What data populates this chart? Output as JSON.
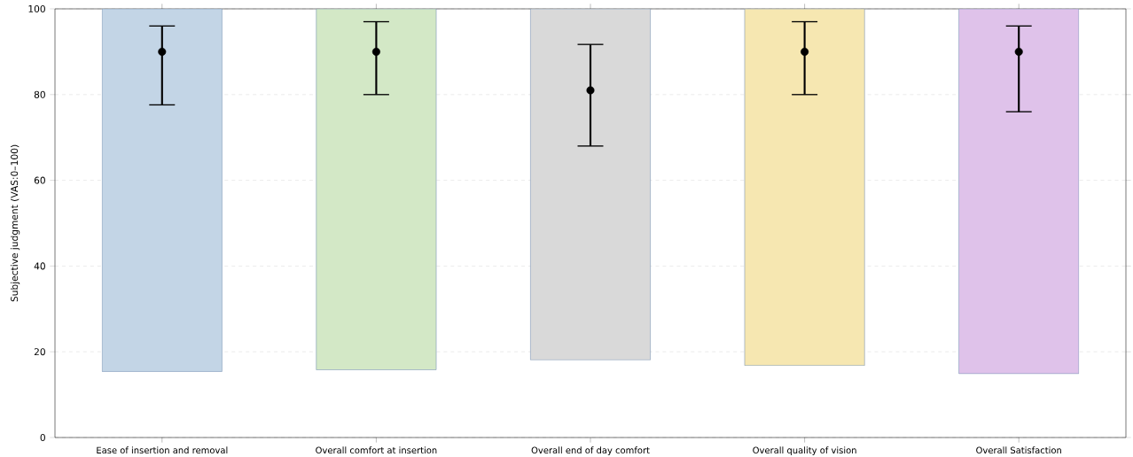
{
  "chart_data": {
    "type": "bar",
    "ylabel": "Subjective judgment (VAS:0–100)",
    "categories": [
      "Ease of insertion and removal",
      "Overall comfort at insertion",
      "Overall end of day comfort",
      "Overall quality of vision",
      "Overall Satisfaction"
    ],
    "series": [
      {
        "base": [
          15.4,
          15.8,
          18.1,
          16.8,
          14.9
        ],
        "values": [
          84.6,
          84.2,
          81.9,
          83.2,
          85.1
        ],
        "colors": [
          "#c3d5e6",
          "#d3e8c6",
          "#d9d9d9",
          "#f6e7b1",
          "#dfc2ea"
        ]
      },
      {
        "type": "scatter",
        "x": [
          "Ease of insertion and removal",
          "Overall comfort at insertion",
          "Overall end of day comfort",
          "Overall quality of vision",
          "Overall Satisfaction"
        ],
        "values": [
          90,
          90,
          81,
          90,
          90
        ],
        "errors": [
          [
            77.6,
            96
          ],
          [
            80,
            97
          ],
          [
            68,
            91.7
          ],
          [
            80,
            97
          ],
          [
            76,
            96
          ]
        ],
        "color": "#000000",
        "marker": "circle"
      }
    ],
    "ylim": [
      0,
      100
    ],
    "yticks": [
      0,
      20,
      40,
      60,
      80,
      100
    ],
    "grid": "y"
  }
}
